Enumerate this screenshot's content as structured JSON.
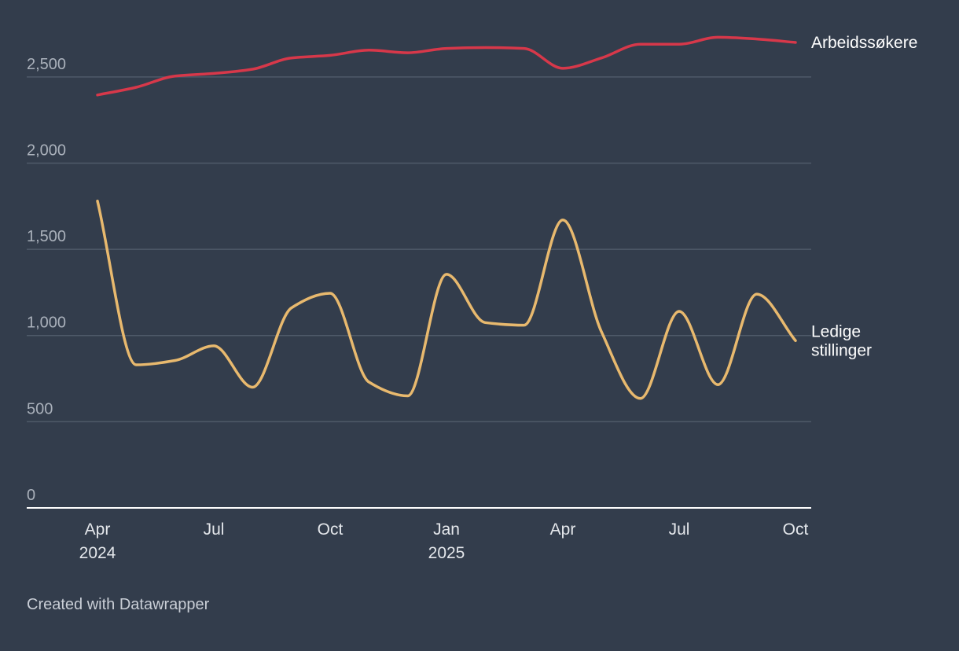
{
  "chart_data": {
    "type": "line",
    "x": [
      "2024-04",
      "2024-05",
      "2024-06",
      "2024-07",
      "2024-08",
      "2024-09",
      "2024-10",
      "2024-11",
      "2024-12",
      "2025-01",
      "2025-02",
      "2025-03",
      "2025-04",
      "2025-05",
      "2025-06",
      "2025-07",
      "2025-08",
      "2025-09",
      "2025-10"
    ],
    "series": [
      {
        "name": "Arbeidssøkere",
        "color": "#d7384a",
        "values": [
          2395,
          2440,
          2505,
          2520,
          2545,
          2610,
          2625,
          2655,
          2640,
          2665,
          2670,
          2665,
          2550,
          2610,
          2690,
          2690,
          2730,
          2720,
          2700
        ]
      },
      {
        "name": "Ledige stillinger",
        "label_lines": [
          "Ledige",
          "stillinger"
        ],
        "color": "#e8b96e",
        "values": [
          1780,
          830,
          855,
          940,
          700,
          1160,
          1245,
          730,
          650,
          1355,
          1075,
          1060,
          1670,
          1020,
          635,
          1140,
          715,
          1240,
          970
        ]
      }
    ],
    "x_ticks": [
      {
        "x": "2024-04",
        "lines": [
          "Apr",
          "2024"
        ]
      },
      {
        "x": "2024-07",
        "lines": [
          "Jul"
        ]
      },
      {
        "x": "2024-10",
        "lines": [
          "Oct"
        ]
      },
      {
        "x": "2025-01",
        "lines": [
          "Jan",
          "2025"
        ]
      },
      {
        "x": "2025-04",
        "lines": [
          "Apr"
        ]
      },
      {
        "x": "2025-07",
        "lines": [
          "Jul"
        ]
      },
      {
        "x": "2025-10",
        "lines": [
          "Oct"
        ]
      }
    ],
    "y_ticks": [
      {
        "value": 0,
        "label": "0"
      },
      {
        "value": 500,
        "label": "500"
      },
      {
        "value": 1000,
        "label": "1,000"
      },
      {
        "value": 1500,
        "label": "1,500"
      },
      {
        "value": 2000,
        "label": "2,000"
      },
      {
        "value": 2500,
        "label": "2,500"
      }
    ],
    "ylim": [
      0,
      2750
    ],
    "grid": true,
    "legend": "inline-right",
    "title": "",
    "xlabel": "",
    "ylabel": ""
  },
  "footer": {
    "credit": "Created with Datawrapper"
  }
}
